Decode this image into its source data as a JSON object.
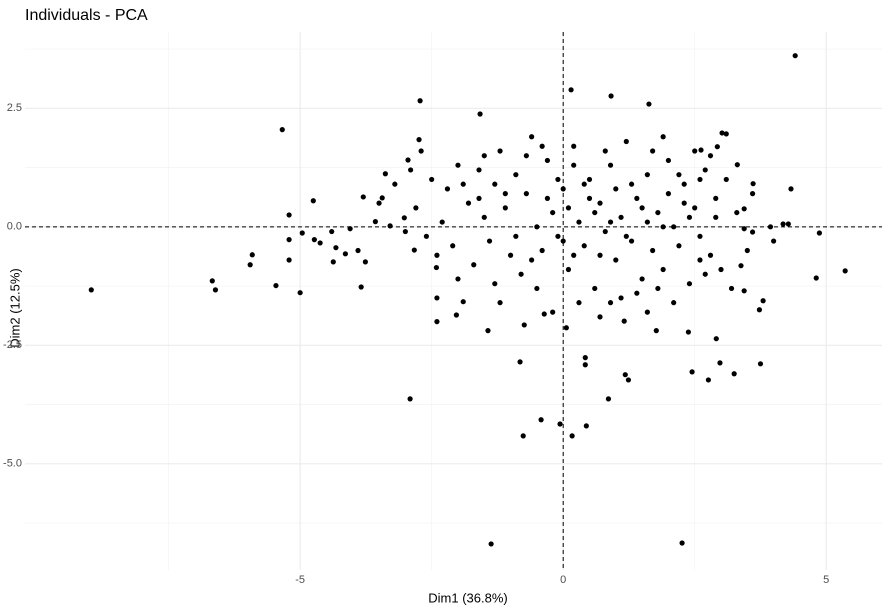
{
  "chart_data": {
    "type": "scatter",
    "title": "Individuals - PCA",
    "x_label": "Dim1 (36.8%)",
    "y_label": "Dim2 (12.5%)",
    "color": "#000000",
    "grid": true,
    "reference_lines": {
      "x": 0,
      "y": 0
    },
    "xlim": [
      -10.23,
      6.06
    ],
    "ylim": [
      -7.24,
      4.11
    ],
    "xticks": [
      -5,
      0,
      5
    ],
    "yticks": [
      2.5,
      {
        "value": 0,
        "label": "0.0"
      },
      -2.5,
      {
        "value": -5,
        "label": "-5.0"
      }
    ],
    "x": [
      -8.97,
      4.41,
      -1.37,
      2.26,
      -2.91,
      -5.34,
      -2.72,
      0.15,
      0.91,
      1.63,
      -1.58,
      5.36,
      4.81,
      4.87,
      -6.67,
      -6.61,
      -5.95,
      -5.91,
      -5.46,
      -5.0,
      -5.21,
      -5.21,
      -5.21,
      -4.75,
      -4.96,
      -4.73,
      -4.62,
      -4.37,
      -4.32,
      -4.14,
      -4.05,
      -3.84,
      -3.8,
      -3.76,
      -3.57,
      -3.44,
      -3.38,
      -3.29,
      -3.02,
      -2.95,
      -2.83,
      -2.74,
      -2.41,
      -2.4,
      -2.4,
      -2.03,
      -1.9,
      -1.43,
      -0.82,
      -0.76,
      -0.42,
      -0.06,
      0.17,
      0.44,
      0.86,
      0.42,
      0.42,
      1.18,
      1.24,
      2.45,
      2.76,
      2.98,
      3.25,
      3.75,
      2.91,
      2.38,
      -0.74,
      0.06,
      -0.36,
      1.16,
      1.77,
      3.8,
      3.73,
      3.44,
      3.6,
      3.94,
      4.18,
      4.28,
      4.33,
      3.61,
      3.44,
      3.44,
      3.38,
      3.31,
      3.02,
      3.1,
      2.93,
      2.62,
      -2.5,
      -2.2,
      -2.0,
      -1.8,
      -1.6,
      -1.5,
      -1.4,
      -1.3,
      -1.2,
      -1.1,
      -1.0,
      -0.9,
      -0.8,
      -0.7,
      -0.6,
      -0.5,
      -0.4,
      -0.3,
      -0.2,
      -0.1,
      0.0,
      0.1,
      0.2,
      0.3,
      0.4,
      0.5,
      0.6,
      0.7,
      0.8,
      0.9,
      1.0,
      1.1,
      1.2,
      1.3,
      1.4,
      1.5,
      1.6,
      1.7,
      1.8,
      1.9,
      2.0,
      2.1,
      2.2,
      2.3,
      2.4,
      2.5,
      2.6,
      2.7,
      2.8,
      2.9,
      3.0,
      -2.8,
      -2.6,
      -2.3,
      -2.1,
      -1.9,
      -1.7,
      -1.5,
      -1.3,
      -1.1,
      -0.9,
      -0.7,
      -0.5,
      -0.3,
      -0.1,
      0.1,
      0.3,
      0.5,
      0.7,
      0.9,
      1.1,
      1.3,
      1.5,
      1.7,
      1.9,
      2.1,
      2.3,
      2.5,
      2.7,
      2.9,
      3.1,
      3.3,
      3.5,
      -3.2,
      -3.0,
      -2.7,
      -2.4,
      -1.2,
      -0.6,
      0.0,
      0.2,
      0.4,
      0.6,
      0.8,
      1.0,
      1.2,
      1.4,
      1.6,
      1.8,
      2.0,
      2.2,
      2.4,
      2.6,
      2.8,
      3.2,
      3.6,
      4.0,
      -0.2,
      0.7,
      1.6,
      -1.6,
      -2.0,
      -3.5,
      -3.9,
      -4.4,
      -2.9,
      -0.4,
      0.2,
      0.9,
      1.9,
      2.6
    ],
    "values": [
      -1.33,
      3.61,
      -6.69,
      -6.67,
      -3.63,
      2.05,
      2.66,
      2.89,
      2.76,
      2.59,
      2.38,
      -0.93,
      -1.08,
      -0.13,
      -1.14,
      -1.33,
      -0.8,
      -0.59,
      -1.24,
      -1.39,
      -0.7,
      -0.27,
      0.25,
      0.55,
      -0.13,
      -0.27,
      -0.34,
      -0.74,
      -0.44,
      -0.57,
      -0.04,
      -1.27,
      0.63,
      -0.74,
      0.11,
      0.61,
      1.12,
      0.02,
      0.19,
      1.41,
      -0.49,
      1.84,
      -0.86,
      -1.5,
      -2.0,
      -1.86,
      -1.58,
      -2.19,
      -2.85,
      -4.41,
      -4.07,
      -4.16,
      -4.41,
      -4.2,
      -3.63,
      -2.76,
      -2.91,
      -3.12,
      -3.23,
      -3.06,
      -3.23,
      -2.87,
      -3.1,
      -2.89,
      -2.36,
      -2.22,
      -2.07,
      -2.13,
      -1.84,
      -1.99,
      -2.19,
      -1.56,
      -1.75,
      -1.35,
      -0.11,
      0,
      0.06,
      0.06,
      0.8,
      0.91,
      0.38,
      -0.04,
      -0.82,
      1.31,
      1.98,
      1.96,
      1.69,
      1.62,
      1.0,
      0.8,
      1.3,
      0.5,
      1.2,
      0.2,
      -0.3,
      0.9,
      1.6,
      0.4,
      -0.6,
      1.1,
      -1.0,
      0.7,
      1.9,
      0.0,
      -0.5,
      1.4,
      0.3,
      -0.2,
      0.8,
      -0.9,
      1.7,
      0.1,
      -0.4,
      1.0,
      -1.3,
      0.5,
      -0.1,
      1.3,
      -0.7,
      0.2,
      1.8,
      -0.3,
      0.6,
      -1.1,
      1.1,
      -0.5,
      0.3,
      -0.9,
      1.4,
      0.0,
      -0.4,
      0.9,
      -1.2,
      0.4,
      -0.2,
      1.2,
      -0.6,
      0.2,
      -0.9,
      0.4,
      -0.2,
      0.1,
      -0.4,
      0.9,
      -0.8,
      1.5,
      -1.2,
      0.7,
      -0.2,
      1.5,
      -1.3,
      0.6,
      1.0,
      0.4,
      -1.6,
      0.6,
      -0.6,
      0.1,
      -1.5,
      0.9,
      0.4,
      1.6,
      0.0,
      -1.6,
      0.5,
      1.6,
      -1.0,
      0.6,
      1.0,
      0.3,
      -0.5,
      0.9,
      -0.1,
      1.6,
      -0.6,
      -1.6,
      -0.7,
      -0.3,
      -0.6,
      0.9,
      0.3,
      1.6,
      0.8,
      -0.2,
      -1.4,
      0.1,
      -1.3,
      0.7,
      1.1,
      0.2,
      -0.7,
      1.5,
      -1.3,
      0.7,
      -0.3,
      -1.8,
      -1.9,
      -1.8,
      0.6,
      -1.1,
      0.5,
      -0.5,
      -0.1,
      1.2,
      1.7,
      1.3,
      -1.6,
      1.9,
      1.0
    ]
  }
}
